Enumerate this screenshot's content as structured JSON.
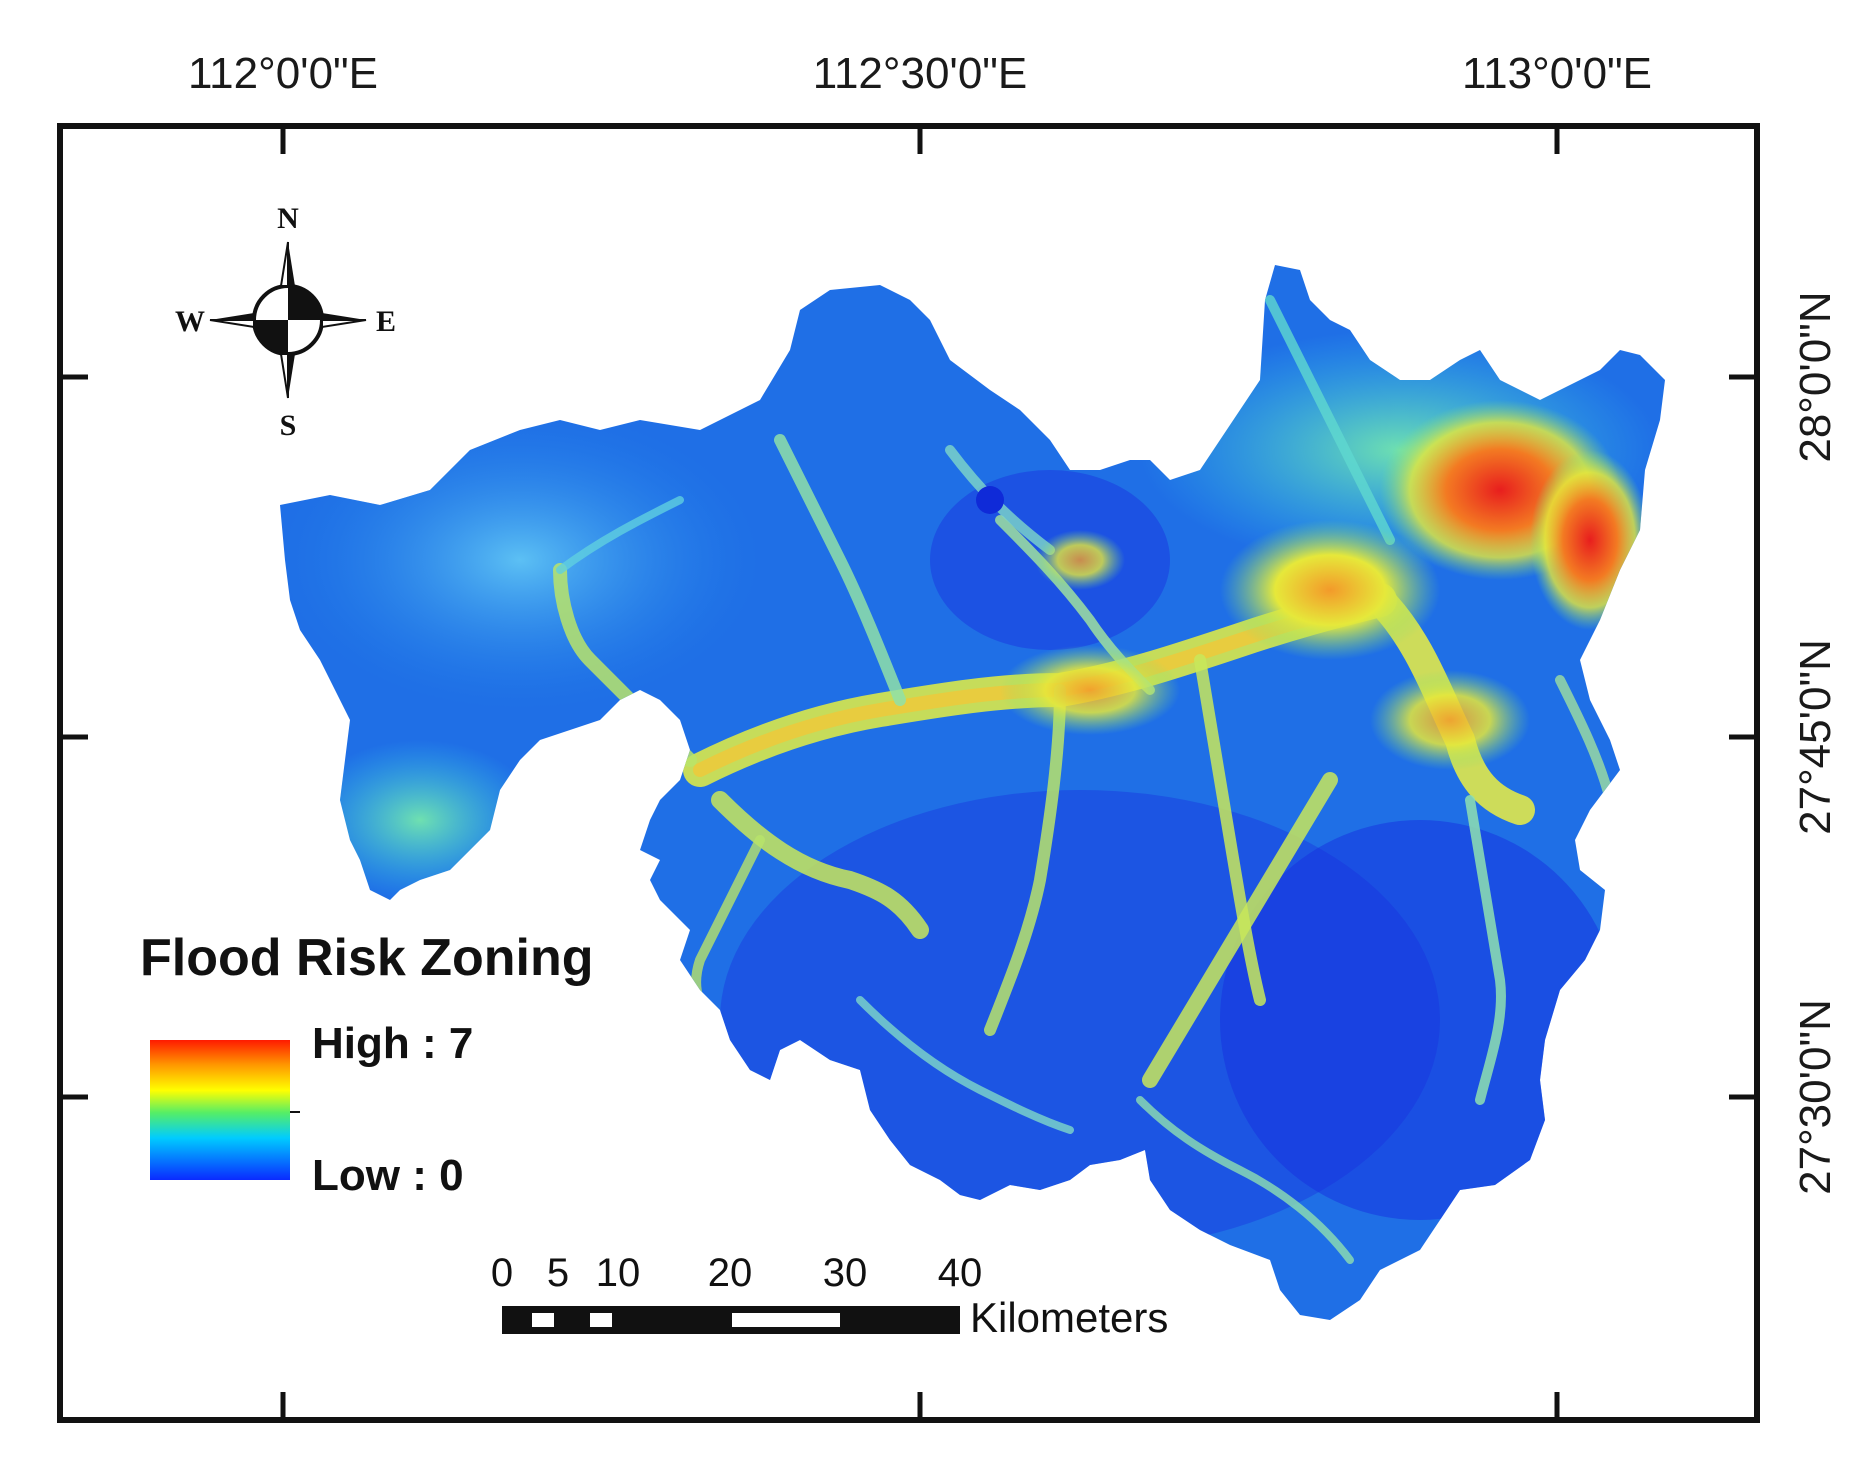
{
  "map": {
    "legend": {
      "title": "Flood Risk Zoning",
      "high_label": "High : 7",
      "low_label": "Low : 0",
      "colors": [
        "#ff0000",
        "#ffaa00",
        "#ffff00",
        "#00ff66",
        "#00ccff",
        "#0033ff"
      ]
    },
    "graticule": {
      "lon_labels": [
        "112°0'0\"E",
        "112°30'0\"E",
        "113°0'0\"E"
      ],
      "lat_labels": [
        "28°0'0\"N",
        "27°45'0\"N",
        "27°30'0\"N"
      ]
    },
    "compass": {
      "n": "N",
      "s": "S",
      "e": "E",
      "w": "W"
    },
    "scale_bar": {
      "ticks": [
        "0",
        "5",
        "10",
        "20",
        "30",
        "40"
      ],
      "unit": "Kilometers"
    },
    "palette": {
      "deep_blue": "#1a3fe0",
      "mid_blue": "#1f7fe8",
      "light_blue": "#33a8f0",
      "cyan": "#2fd4e8",
      "green": "#7fe07a",
      "yellow": "#e6e83a",
      "orange": "#f39a2a",
      "red": "#e81e1e"
    }
  }
}
